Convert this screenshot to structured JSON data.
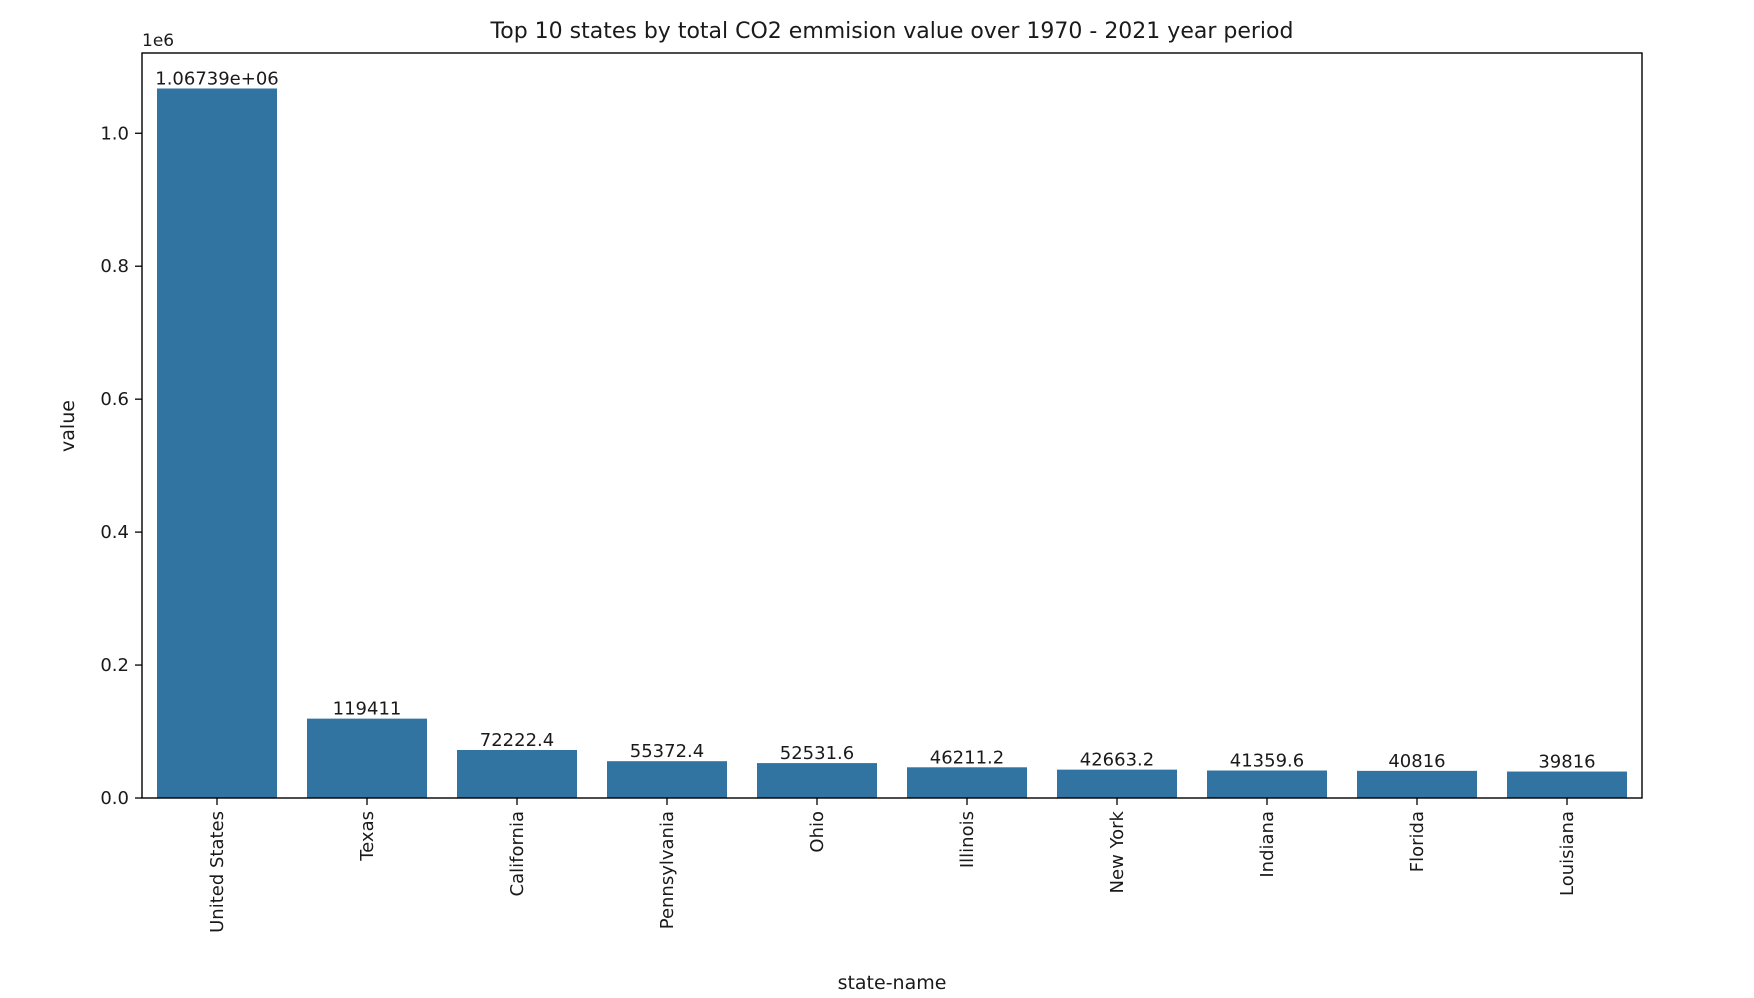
{
  "chart_data": {
    "type": "bar",
    "title": "Top 10 states by total CO2 emmision value over 1970 - 2021 year period",
    "xlabel": "state-name",
    "ylabel": "value",
    "y_offset_label": "1e6",
    "ylim": [
      0,
      1120760
    ],
    "yticks": [
      {
        "value": 0,
        "label": "0.0"
      },
      {
        "value": 200000,
        "label": "0.2"
      },
      {
        "value": 400000,
        "label": "0.4"
      },
      {
        "value": 600000,
        "label": "0.6"
      },
      {
        "value": 800000,
        "label": "0.8"
      },
      {
        "value": 1000000,
        "label": "1.0"
      }
    ],
    "categories": [
      "United States",
      "Texas",
      "California",
      "Pennsylvania",
      "Ohio",
      "Illinois",
      "New York",
      "Indiana",
      "Florida",
      "Louisiana"
    ],
    "values": [
      1067390,
      119411,
      72222.4,
      55372.4,
      52531.6,
      46211.2,
      42663.2,
      41359.6,
      40816,
      39816
    ],
    "data_labels": [
      "1.06739e+06",
      "119411",
      "72222.4",
      "55372.4",
      "52531.6",
      "46211.2",
      "42663.2",
      "41359.6",
      "40816",
      "39816"
    ],
    "bar_color": "#3274a1",
    "grid": false,
    "legend": "none"
  }
}
